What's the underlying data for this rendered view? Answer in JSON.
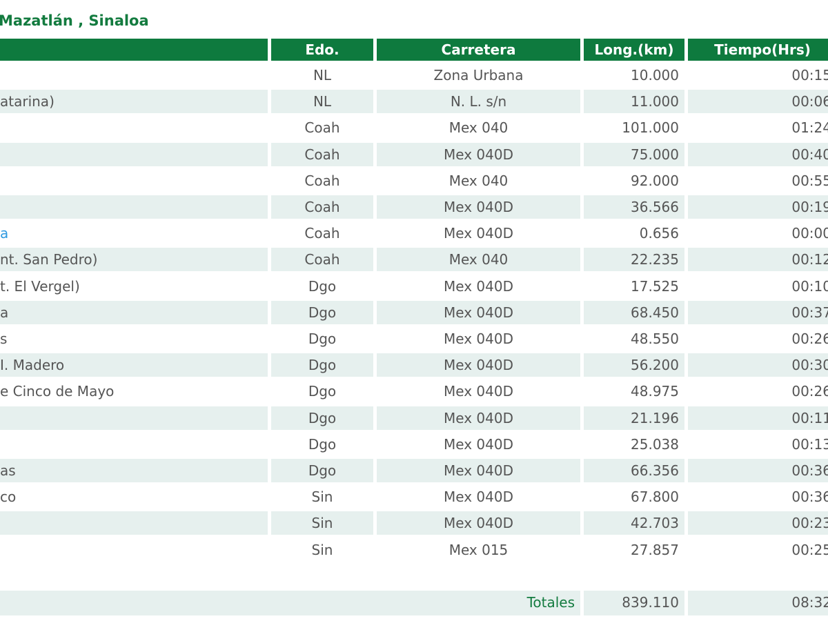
{
  "header": {
    "title": "Mazatlán , Sinaloa"
  },
  "table": {
    "columns": [
      "Edo.",
      "Carretera",
      "Long.(km)",
      "Tiempo(Hrs)"
    ],
    "rows": [
      {
        "edo": "NL",
        "carretera": "Zona Urbana",
        "long": "10.000",
        "tiempo": "00:15"
      },
      {
        "lugar": "atarina)",
        "edo": "NL",
        "carretera": "N. L. s/n",
        "long": "11.000",
        "tiempo": "00:06"
      },
      {
        "edo": "Coah",
        "carretera": "Mex 040",
        "long": "101.000",
        "tiempo": "01:24"
      },
      {
        "edo": "Coah",
        "carretera": "Mex 040D",
        "long": "75.000",
        "tiempo": "00:40"
      },
      {
        "edo": "Coah",
        "carretera": "Mex 040",
        "long": "92.000",
        "tiempo": "00:55"
      },
      {
        "edo": "Coah",
        "carretera": "Mex 040D",
        "long": "36.566",
        "tiempo": "00:19"
      },
      {
        "lugar": "a",
        "link": true,
        "edo": "Coah",
        "carretera": "Mex 040D",
        "long": "0.656",
        "tiempo": "00:00"
      },
      {
        "lugar": "nt. San Pedro)",
        "edo": "Coah",
        "carretera": "Mex 040",
        "long": "22.235",
        "tiempo": "00:12"
      },
      {
        "lugar": "t. El Vergel)",
        "edo": "Dgo",
        "carretera": "Mex 040D",
        "long": "17.525",
        "tiempo": "00:10"
      },
      {
        "lugar": "a",
        "edo": "Dgo",
        "carretera": "Mex 040D",
        "long": "68.450",
        "tiempo": "00:37"
      },
      {
        "lugar": "s",
        "edo": "Dgo",
        "carretera": "Mex 040D",
        "long": "48.550",
        "tiempo": "00:26"
      },
      {
        "lugar": "I. Madero",
        "edo": "Dgo",
        "carretera": "Mex 040D",
        "long": "56.200",
        "tiempo": "00:30"
      },
      {
        "lugar": "e Cinco de Mayo",
        "edo": "Dgo",
        "carretera": "Mex 040D",
        "long": "48.975",
        "tiempo": "00:26"
      },
      {
        "edo": "Dgo",
        "carretera": "Mex 040D",
        "long": "21.196",
        "tiempo": "00:11"
      },
      {
        "edo": "Dgo",
        "carretera": "Mex 040D",
        "long": "25.038",
        "tiempo": "00:13"
      },
      {
        "lugar": "as",
        "edo": "Dgo",
        "carretera": "Mex 040D",
        "long": "66.356",
        "tiempo": "00:36"
      },
      {
        "lugar": "co",
        "edo": "Sin",
        "carretera": "Mex 040D",
        "long": "67.800",
        "tiempo": "00:36"
      },
      {
        "edo": "Sin",
        "carretera": "Mex 040D",
        "long": "42.703",
        "tiempo": "00:23"
      },
      {
        "edo": "Sin",
        "carretera": "Mex 015",
        "long": "27.857",
        "tiempo": "00:25"
      }
    ],
    "totals": {
      "label": "Totales",
      "long": "839.110",
      "tiempo": "08:32"
    }
  }
}
